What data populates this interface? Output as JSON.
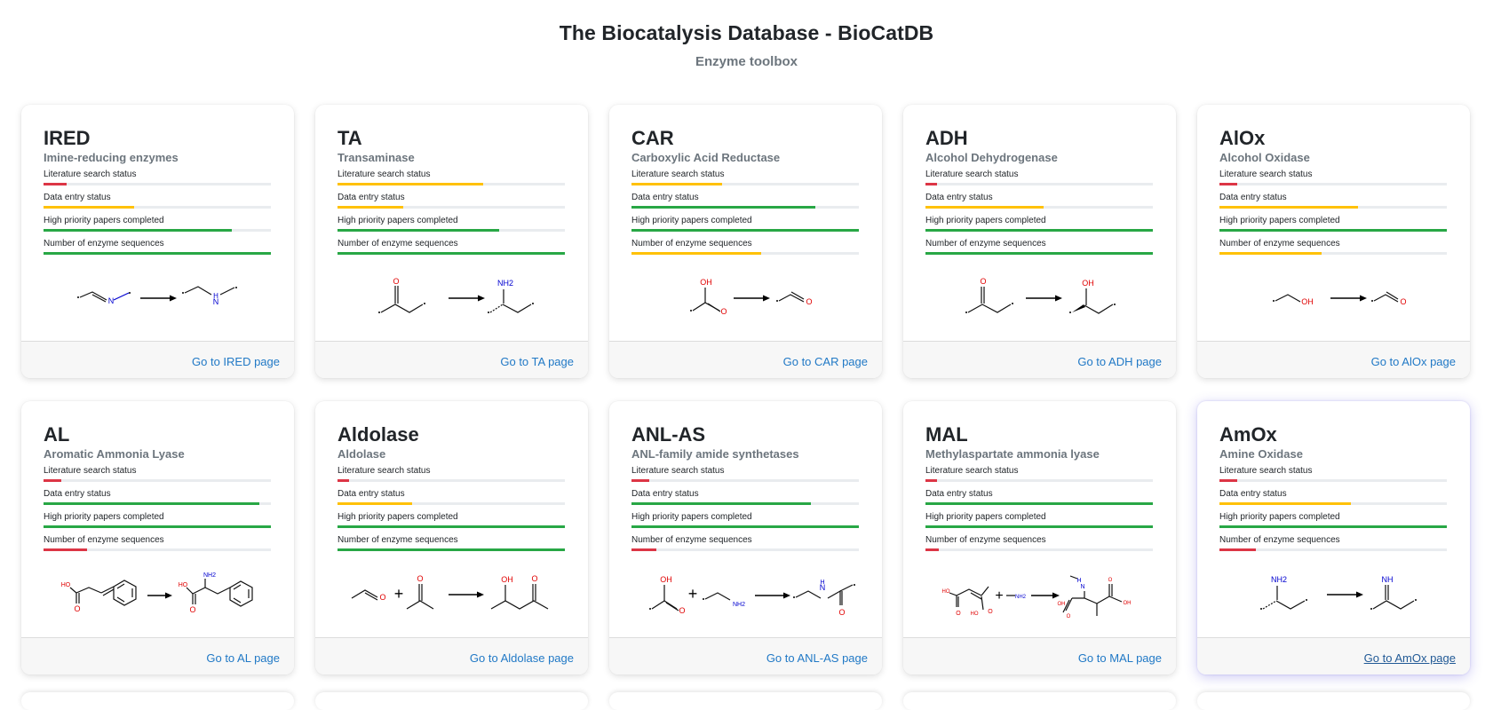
{
  "header": {
    "title": "The Biocatalysis Database - BioCatDB",
    "subtitle": "Enzyme toolbox"
  },
  "colors": {
    "red": "#dc3545",
    "yellow": "#ffc107",
    "green": "#28a745",
    "track": "#e9ecef",
    "link": "#2179c6"
  },
  "metric_labels": [
    "Literature search status",
    "Data entry status",
    "High priority papers completed",
    "Number of enzyme sequences"
  ],
  "cards": [
    {
      "abbr": "IRED",
      "name": "Imine-reducing enzymes",
      "link": "Go to IRED page",
      "metrics": [
        {
          "level": 0.1,
          "color": "red"
        },
        {
          "level": 0.4,
          "color": "yellow"
        },
        {
          "level": 0.83,
          "color": "green"
        },
        {
          "level": 1.0,
          "color": "green"
        }
      ],
      "reaction": "imine reduction: imine → amine",
      "scheme_labels": [
        "N",
        "H",
        "N"
      ]
    },
    {
      "abbr": "TA",
      "name": "Transaminase",
      "link": "Go to TA page",
      "metrics": [
        {
          "level": 0.64,
          "color": "yellow"
        },
        {
          "level": 0.29,
          "color": "yellow"
        },
        {
          "level": 0.71,
          "color": "green"
        },
        {
          "level": 1.0,
          "color": "green"
        }
      ],
      "reaction": "ketone → chiral amine",
      "scheme_labels": [
        "O",
        "NH2"
      ]
    },
    {
      "abbr": "CAR",
      "name": "Carboxylic Acid Reductase",
      "link": "Go to CAR page",
      "metrics": [
        {
          "level": 0.4,
          "color": "yellow"
        },
        {
          "level": 0.81,
          "color": "green"
        },
        {
          "level": 1.0,
          "color": "green"
        },
        {
          "level": 0.57,
          "color": "yellow"
        }
      ],
      "reaction": "carboxylic acid → aldehyde",
      "scheme_labels": [
        "OH",
        "O",
        "O"
      ]
    },
    {
      "abbr": "ADH",
      "name": "Alcohol Dehydrogenase",
      "link": "Go to ADH page",
      "metrics": [
        {
          "level": 0.05,
          "color": "red"
        },
        {
          "level": 0.52,
          "color": "yellow"
        },
        {
          "level": 1.0,
          "color": "green"
        },
        {
          "level": 1.0,
          "color": "green"
        }
      ],
      "reaction": "ketone → chiral alcohol",
      "scheme_labels": [
        "O",
        "OH"
      ]
    },
    {
      "abbr": "AlOx",
      "name": "Alcohol Oxidase",
      "link": "Go to AlOx page",
      "metrics": [
        {
          "level": 0.08,
          "color": "red"
        },
        {
          "level": 0.61,
          "color": "yellow"
        },
        {
          "level": 1.0,
          "color": "green"
        },
        {
          "level": 0.45,
          "color": "yellow"
        }
      ],
      "reaction": "alcohol → aldehyde",
      "scheme_labels": [
        "OH",
        "O"
      ]
    },
    {
      "abbr": "AL",
      "name": "Aromatic Ammonia Lyase",
      "link": "Go to AL page",
      "metrics": [
        {
          "level": 0.08,
          "color": "red"
        },
        {
          "level": 0.95,
          "color": "green"
        },
        {
          "level": 1.0,
          "color": "green"
        },
        {
          "level": 0.19,
          "color": "red"
        }
      ],
      "reaction": "cinnamic acid → phenylalanine",
      "scheme_labels": [
        "HO",
        "O",
        "HO",
        "NH2",
        "O"
      ]
    },
    {
      "abbr": "Aldolase",
      "name": "Aldolase",
      "link": "Go to Aldolase page",
      "metrics": [
        {
          "level": 0.05,
          "color": "red"
        },
        {
          "level": 0.33,
          "color": "yellow"
        },
        {
          "level": 1.0,
          "color": "green"
        },
        {
          "level": 1.0,
          "color": "green"
        }
      ],
      "reaction": "aldehyde + ketone → aldol",
      "scheme_labels": [
        "O",
        "O",
        "OH",
        "O"
      ]
    },
    {
      "abbr": "ANL-AS",
      "name": "ANL-family amide synthetases",
      "link": "Go to ANL-AS page",
      "metrics": [
        {
          "level": 0.08,
          "color": "red"
        },
        {
          "level": 0.79,
          "color": "green"
        },
        {
          "level": 1.0,
          "color": "green"
        },
        {
          "level": 0.11,
          "color": "red"
        }
      ],
      "reaction": "acid + amine → amide",
      "scheme_labels": [
        "OH",
        "O",
        "NH2",
        "H",
        "N",
        "O"
      ]
    },
    {
      "abbr": "MAL",
      "name": "Methylaspartate ammonia lyase",
      "link": "Go to MAL page",
      "metrics": [
        {
          "level": 0.05,
          "color": "red"
        },
        {
          "level": 1.0,
          "color": "green"
        },
        {
          "level": 1.0,
          "color": "green"
        },
        {
          "level": 0.06,
          "color": "red"
        }
      ],
      "reaction": "mesaconic acid + amine → amino acid",
      "scheme_labels": [
        "HO",
        "O",
        "HO",
        "O",
        "NH2",
        "H",
        "N",
        "OH",
        "O",
        "OH",
        "O"
      ]
    },
    {
      "abbr": "AmOx",
      "name": "Amine Oxidase",
      "link": "Go to AmOx page",
      "metrics": [
        {
          "level": 0.08,
          "color": "red"
        },
        {
          "level": 0.58,
          "color": "yellow"
        },
        {
          "level": 1.0,
          "color": "green"
        },
        {
          "level": 0.16,
          "color": "red"
        }
      ],
      "reaction": "amine → imine",
      "scheme_labels": [
        "NH2",
        "NH"
      ]
    }
  ]
}
